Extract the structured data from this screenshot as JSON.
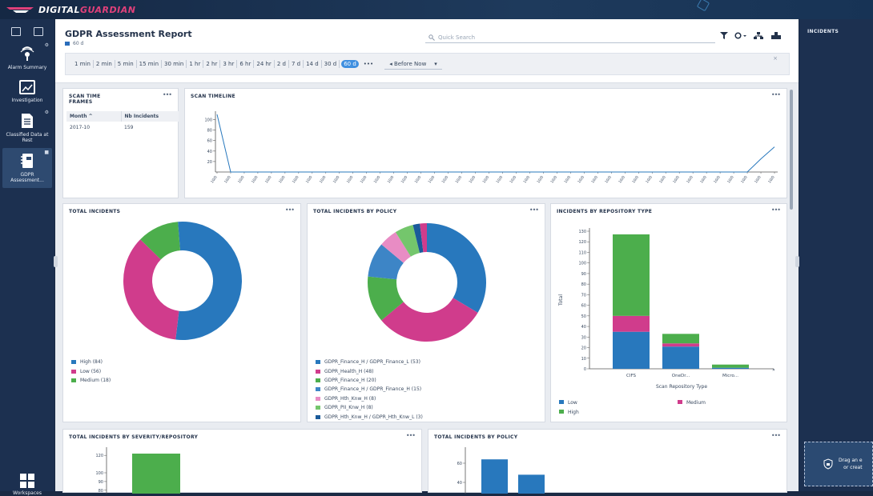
{
  "brand": {
    "prefix": "DIGITAL",
    "accent": "GUARDIAN"
  },
  "sidebar": {
    "items": [
      {
        "label": "Alarm Summary",
        "icon": "alarm-icon"
      },
      {
        "label": "Investigation",
        "icon": "investigation-chart-icon"
      },
      {
        "label": "Classified Data at Rest",
        "icon": "document-icon"
      },
      {
        "label": "GDPR Assessment...",
        "icon": "notebook-icon"
      }
    ],
    "workspaces": "Workspaces"
  },
  "header": {
    "title": "GDPR Assessment Report",
    "subtitle": "60 d",
    "search_placeholder": "Quick Search"
  },
  "timebar": {
    "options": [
      "1 min",
      "2 min",
      "5 min",
      "15 min",
      "30 min",
      "1 hr",
      "2 hr",
      "3 hr",
      "6 hr",
      "24 hr",
      "2 d",
      "7 d",
      "14 d",
      "30 d",
      "60 d"
    ],
    "selected": "60 d",
    "more": "•••",
    "before_label": "Before Now",
    "before_arrow": "◂",
    "chevron": "▾",
    "close": "×"
  },
  "panels": {
    "scan_frames": {
      "title_line1": "SCAN TIME",
      "title_line2": "FRAMES",
      "columns": [
        "Month ^",
        "Nb Incidents"
      ],
      "rows": [
        [
          "2017-10",
          "159"
        ]
      ]
    },
    "scan_timeline": {
      "title": "SCAN TIMELINE"
    },
    "total_incidents": {
      "title": "TOTAL INCIDENTS"
    },
    "incidents_by_policy": {
      "title": "TOTAL INCIDENTS BY POLICY"
    },
    "incidents_by_repo": {
      "title": "INCIDENTS BY REPOSITORY TYPE"
    },
    "severity_repo": {
      "title": "TOTAL INCIDENTS BY SEVERITY/REPOSITORY"
    },
    "policy_bottom": {
      "title": "TOTAL INCIDENTS BY POLICY"
    }
  },
  "right_panel": {
    "title": "INCIDENTS",
    "drop_line1": "Drag an e",
    "drop_line2": "or creat"
  },
  "colors": {
    "blue": "#2878bd",
    "magenta": "#d03c8c",
    "green": "#4cae4c",
    "light_green": "#74c66c",
    "pink": "#e88cc4",
    "steel": "#3d85c6",
    "dark_blue": "#1a5a9a"
  },
  "chart_data": [
    {
      "type": "line",
      "title": "SCAN TIMELINE",
      "yticks": [
        100,
        80,
        60,
        40,
        20
      ],
      "ylim": [
        0,
        110
      ],
      "x_tick_count": 42,
      "x_tick_label": "10/0",
      "series": [
        {
          "values": [
            110,
            0,
            0,
            0,
            0,
            0,
            0,
            0,
            0,
            0,
            0,
            0,
            0,
            0,
            0,
            0,
            0,
            0,
            0,
            0,
            0,
            0,
            0,
            0,
            0,
            0,
            0,
            0,
            0,
            0,
            0,
            0,
            0,
            0,
            0,
            0,
            0,
            0,
            0,
            0,
            25,
            48
          ]
        }
      ]
    },
    {
      "type": "pie",
      "title": "TOTAL INCIDENTS",
      "labels": [
        "High (84)",
        "Low (56)",
        "Medium (18)"
      ],
      "values": [
        84,
        56,
        18
      ]
    },
    {
      "type": "pie",
      "title": "TOTAL INCIDENTS BY POLICY",
      "labels": [
        "GDPR_Finance_H / GDPR_Finance_L (53)",
        "GDPR_Health_H (48)",
        "GDPR_Finance_H (20)",
        "GDPR_Finance_H / GDPR_Finance_H (15)",
        "GDPR_Hth_Knw_H (8)",
        "GDPR_PII_Knw_H (8)",
        "GDPR_Hth_Knw_H / GDPR_Hth_Knw_L (3)",
        "GDPR_PII_Knw_H / GDPR_PII_Knw_L (3)"
      ],
      "values": [
        53,
        48,
        20,
        15,
        8,
        8,
        3,
        3
      ]
    },
    {
      "type": "bar",
      "title": "INCIDENTS BY REPOSITORY TYPE",
      "categories": [
        "CIFS",
        "OneDr...",
        "Micro..."
      ],
      "xlabel": "Scan Repository Type",
      "ylabel": "Total",
      "ylim": [
        0,
        130
      ],
      "yticks": [
        130,
        120,
        110,
        100,
        90,
        80,
        70,
        60,
        50,
        40,
        30,
        20,
        10,
        0
      ],
      "series": [
        {
          "name": "Low",
          "values": [
            35,
            21,
            1
          ]
        },
        {
          "name": "Medium",
          "values": [
            15,
            3,
            0
          ]
        },
        {
          "name": "High",
          "values": [
            77,
            9,
            3
          ]
        }
      ]
    },
    {
      "type": "bar",
      "title": "TOTAL INCIDENTS BY SEVERITY/REPOSITORY",
      "yticks": [
        120,
        100,
        90,
        80
      ],
      "ylim": [
        78,
        122
      ],
      "series": [
        {
          "values": [
            122
          ]
        }
      ]
    },
    {
      "type": "bar",
      "title": "TOTAL INCIDENTS BY POLICY",
      "yticks": [
        60,
        40
      ],
      "ylim": [
        30,
        70
      ],
      "series": [
        {
          "values": [
            64,
            48
          ]
        }
      ]
    }
  ]
}
